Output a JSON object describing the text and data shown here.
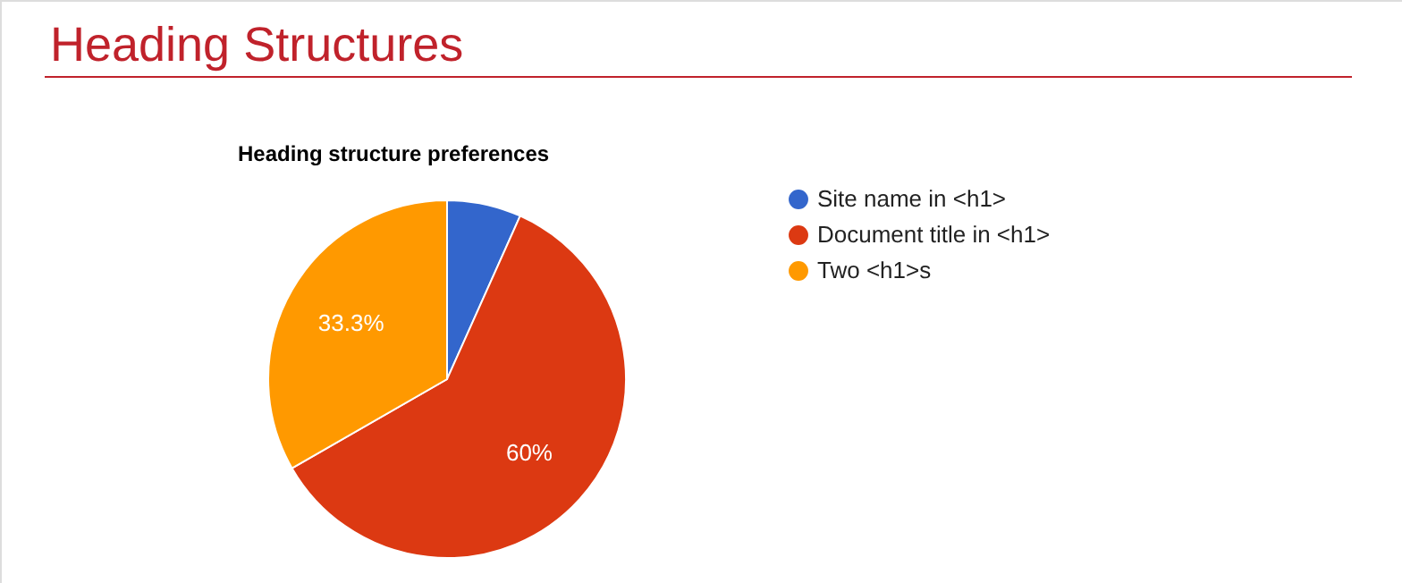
{
  "chart_data": {
    "type": "pie",
    "title": "Heading Structures",
    "subtitle": "Heading structure preferences",
    "categories": [
      "Site name in <h1>",
      "Document title in <h1>",
      "Two <h1>s"
    ],
    "values": [
      6.7,
      60,
      33.3
    ],
    "colors": [
      "#3366cc",
      "#dc3912",
      "#ff9900"
    ],
    "value_labels": [
      null,
      "60%",
      "33.3%"
    ],
    "legend": "right"
  }
}
